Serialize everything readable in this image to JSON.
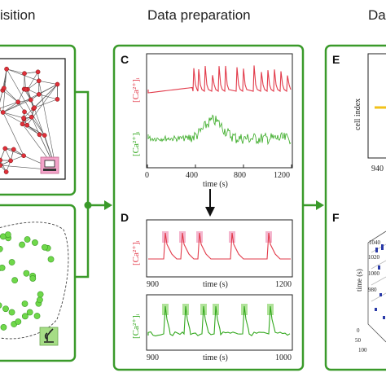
{
  "headers": {
    "left": "isition",
    "center": "Data preparation",
    "right": "Da"
  },
  "panels": {
    "C": "C",
    "D": "D",
    "E": "E",
    "F": "F"
  },
  "panel_c": {
    "red_label": "[Ca²⁺]ᵢ",
    "green_label": "[Ca²⁺]ᵢ",
    "x_ticks": [
      "0",
      "400",
      "800",
      "1200"
    ],
    "x_label": "time (s)"
  },
  "panel_d": {
    "red_label": "[Ca²⁺]ᵢ",
    "red_ticks": [
      "900",
      "1200"
    ],
    "red_xlabel": "time (s)",
    "green_label": "[Ca²⁺]ᵢ",
    "green_ticks": [
      "900",
      "1000"
    ],
    "green_xlabel": "time (s)"
  },
  "panel_e": {
    "y_label": "cell index",
    "x_tick": "940"
  },
  "panel_f": {
    "y_label": "time (s)",
    "ticks": [
      "1040",
      "1020",
      "1000",
      "980"
    ],
    "bottom_ticks": [
      "0",
      "50",
      "100"
    ]
  },
  "colors": {
    "frame": "#3a9a2a",
    "red": "#e23a4a",
    "green": "#33a81e",
    "highlight_red": "#f2a9c6",
    "highlight_green": "#a8e08f"
  },
  "icons": [
    "computer-icon",
    "microscope-icon"
  ]
}
